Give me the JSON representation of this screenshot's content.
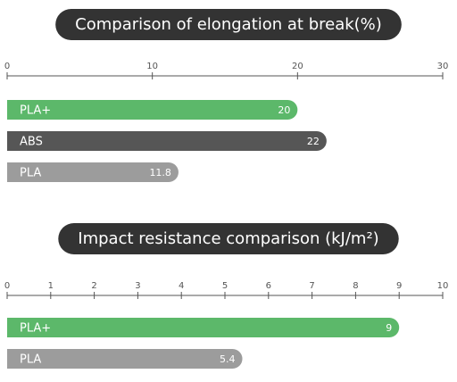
{
  "chart_data": [
    {
      "type": "bar",
      "orientation": "horizontal",
      "title": "Comparison of elongation at break(%)",
      "categories": [
        "PLA+",
        "ABS",
        "PLA"
      ],
      "values": [
        20,
        22,
        11.8
      ],
      "colors": [
        "#5cb86a",
        "#565656",
        "#9c9c9c"
      ],
      "xlim": [
        0,
        30
      ],
      "xticks": [
        0,
        10,
        20,
        30
      ]
    },
    {
      "type": "bar",
      "orientation": "horizontal",
      "title": "Impact resistance comparison (kJ/m²)",
      "categories": [
        "PLA+",
        "PLA"
      ],
      "values": [
        9,
        5.4
      ],
      "colors": [
        "#5cb86a",
        "#9c9c9c"
      ],
      "xlim": [
        0,
        10
      ],
      "xticks": [
        0,
        1,
        2,
        3,
        4,
        5,
        6,
        7,
        8,
        9,
        10
      ]
    }
  ]
}
